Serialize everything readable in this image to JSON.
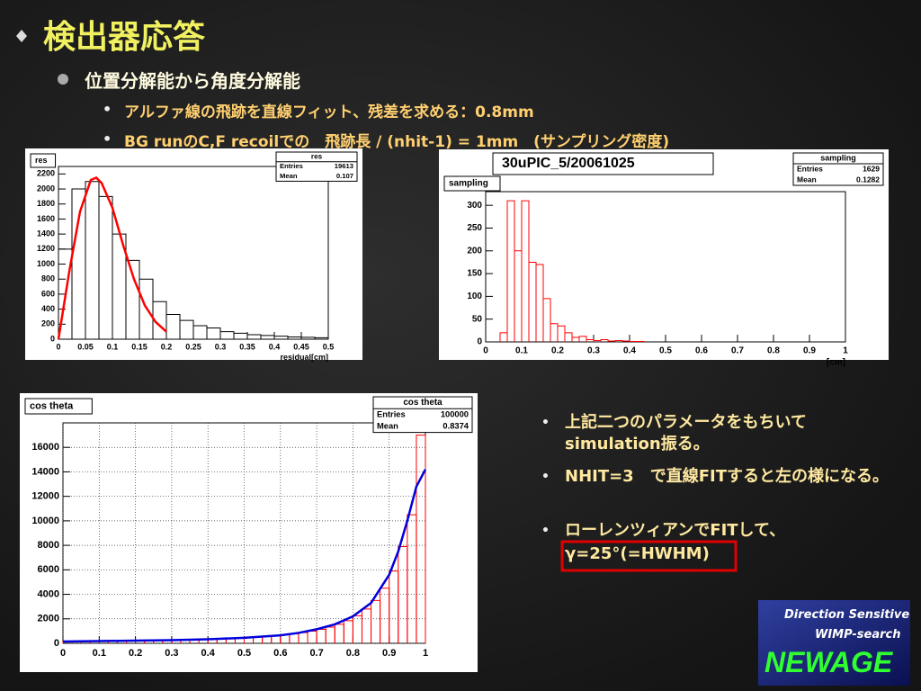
{
  "slide": {
    "title": "検出器応答",
    "bullet": "位置分解能から角度分解能",
    "sub_bullets": [
      "アルファ線の飛跡を直線フィット、残差を求める：0.8mm",
      "BG runのC,F recoilでの　飛跡長 / (nhit-1) = 1mm　(サンプリング密度)"
    ],
    "right_bullets": [
      "上記二つのパラメータをもちいてsimulation振る。",
      "NHIT=3　で直線FITすると左の様になる。",
      "ローレンツィアンでFITして、"
    ],
    "boxed": "γ=25°(=HWHM)",
    "logo": [
      "Direction Sensitive",
      "WIMP-search",
      "NEWAGE"
    ]
  },
  "chart_data": [
    {
      "type": "histogram",
      "label": "res",
      "xlabel": "residual[cm]",
      "color": "#000000",
      "grid": false,
      "stats": {
        "title": "res",
        "entries_label": "Entries",
        "entries": 19613,
        "mean_label": "Mean",
        "mean": 0.107
      },
      "bins": [
        0,
        0.025,
        0.05,
        0.075,
        0.1,
        0.125,
        0.15,
        0.175,
        0.2,
        0.225,
        0.25,
        0.275,
        0.3,
        0.325,
        0.35,
        0.375,
        0.4,
        0.425,
        0.45,
        0.475,
        0.5
      ],
      "counts": [
        1200,
        2000,
        2100,
        1900,
        1400,
        1050,
        800,
        500,
        330,
        250,
        180,
        150,
        100,
        80,
        60,
        50,
        40,
        30,
        25,
        20
      ],
      "fit": {
        "color": "#ff0000",
        "x": [
          0,
          0.02,
          0.04,
          0.06,
          0.07,
          0.08,
          0.1,
          0.12,
          0.14,
          0.16,
          0.18,
          0.2
        ],
        "values": [
          0,
          900,
          1700,
          2120,
          2150,
          2080,
          1750,
          1250,
          800,
          450,
          230,
          100
        ]
      },
      "xlim": [
        0,
        0.5
      ],
      "ylim": [
        0,
        2300
      ],
      "xticks": [
        0,
        0.05,
        0.1,
        0.15,
        0.2,
        0.25,
        0.3,
        0.35,
        0.4,
        0.45,
        0.5
      ],
      "yticks": [
        0,
        200,
        400,
        600,
        800,
        1000,
        1200,
        1400,
        1600,
        1800,
        2000,
        2200
      ]
    },
    {
      "type": "histogram",
      "title": "30uPIC_5/20061025",
      "label": "sampling",
      "xlabel": "[cm]",
      "color": "#ff0000",
      "grid": false,
      "stats": {
        "title": "sampling",
        "entries_label": "Entries",
        "entries": 1629,
        "mean_label": "Mean",
        "mean": 0.1282
      },
      "bins": [
        0.04,
        0.06,
        0.08,
        0.1,
        0.12,
        0.14,
        0.16,
        0.18,
        0.2,
        0.22,
        0.24,
        0.26,
        0.28,
        0.3,
        0.32,
        0.34,
        0.36,
        0.38,
        0.4,
        0.42,
        0.44
      ],
      "counts": [
        20,
        310,
        200,
        310,
        175,
        170,
        95,
        40,
        35,
        20,
        10,
        12,
        5,
        3,
        5,
        2,
        3,
        2,
        1,
        1
      ],
      "xlim": [
        0,
        1
      ],
      "ylim": [
        0,
        330
      ],
      "xticks": [
        0,
        0.1,
        0.2,
        0.3,
        0.4,
        0.5,
        0.6,
        0.7,
        0.8,
        0.9,
        1
      ],
      "yticks": [
        0,
        50,
        100,
        150,
        200,
        250,
        300
      ]
    },
    {
      "type": "histogram",
      "label": "cos theta",
      "color": "#ff0000",
      "grid": true,
      "stats": {
        "title": "cos theta",
        "entries_label": "Entries",
        "entries": 100000,
        "mean_label": "Mean",
        "mean": 0.8374
      },
      "bins": [
        0,
        0.025,
        0.05,
        0.075,
        0.1,
        0.125,
        0.15,
        0.175,
        0.2,
        0.225,
        0.25,
        0.275,
        0.3,
        0.325,
        0.35,
        0.375,
        0.4,
        0.425,
        0.45,
        0.475,
        0.5,
        0.525,
        0.55,
        0.575,
        0.6,
        0.625,
        0.65,
        0.675,
        0.7,
        0.725,
        0.75,
        0.775,
        0.8,
        0.825,
        0.85,
        0.875,
        0.9,
        0.925,
        0.95,
        0.975,
        1
      ],
      "counts": [
        160,
        170,
        170,
        180,
        180,
        190,
        200,
        210,
        220,
        230,
        240,
        260,
        270,
        290,
        300,
        320,
        340,
        370,
        400,
        430,
        470,
        510,
        560,
        620,
        690,
        770,
        870,
        990,
        1140,
        1320,
        1550,
        1850,
        2250,
        2800,
        3500,
        4500,
        5900,
        7900,
        10500,
        17000
      ],
      "fit": {
        "color": "#0000dd",
        "x": [
          0,
          0.1,
          0.2,
          0.3,
          0.4,
          0.5,
          0.6,
          0.65,
          0.7,
          0.75,
          0.8,
          0.85,
          0.9,
          0.925,
          0.95,
          0.975,
          1
        ],
        "values": [
          150,
          180,
          220,
          260,
          330,
          450,
          650,
          850,
          1150,
          1550,
          2200,
          3300,
          5600,
          7500,
          10000,
          12800,
          14200
        ]
      },
      "xlim": [
        0,
        1
      ],
      "ylim": [
        0,
        18000
      ],
      "xticks": [
        0,
        0.1,
        0.2,
        0.3,
        0.4,
        0.5,
        0.6,
        0.7,
        0.8,
        0.9,
        1
      ],
      "yticks": [
        0,
        2000,
        4000,
        6000,
        8000,
        10000,
        12000,
        14000,
        16000
      ]
    }
  ]
}
